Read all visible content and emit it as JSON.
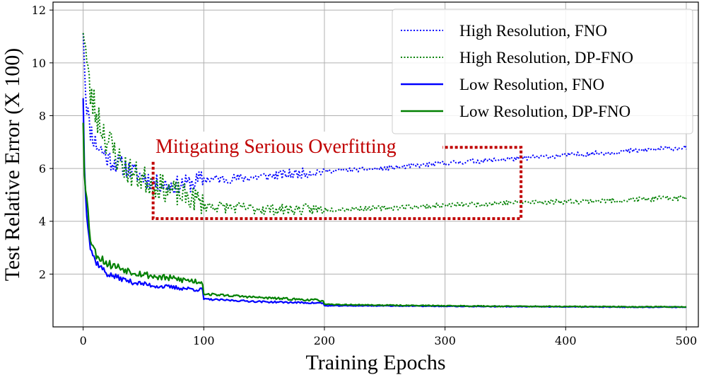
{
  "chart_data": {
    "type": "line",
    "title": "",
    "xlabel": "Training Epochs",
    "ylabel": "Test Relative Error (X 100)",
    "xlim": [
      -25,
      510
    ],
    "ylim": [
      0,
      12.3
    ],
    "x_ticks": [
      0,
      100,
      200,
      300,
      400,
      500
    ],
    "y_ticks": [
      2,
      4,
      6,
      8,
      10,
      12
    ],
    "grid": true,
    "legend": {
      "position": "top-right"
    },
    "series": [
      {
        "name": "High Resolution, FNO",
        "color": "#0000ff",
        "style": "dotted",
        "noise": 0.12,
        "seed": 11,
        "anchors": [
          [
            0,
            11.5
          ],
          [
            2,
            9.0
          ],
          [
            5,
            7.6
          ],
          [
            10,
            7.0
          ],
          [
            20,
            6.4
          ],
          [
            40,
            5.9
          ],
          [
            60,
            5.45
          ],
          [
            75,
            5.35
          ],
          [
            90,
            5.45
          ],
          [
            100,
            5.6
          ],
          [
            120,
            5.6
          ],
          [
            150,
            5.7
          ],
          [
            200,
            5.9
          ],
          [
            250,
            6.0
          ],
          [
            300,
            6.2
          ],
          [
            350,
            6.35
          ],
          [
            400,
            6.5
          ],
          [
            450,
            6.65
          ],
          [
            500,
            6.8
          ]
        ]
      },
      {
        "name": "High Resolution, DP-FNO",
        "color": "#008000",
        "style": "dotted",
        "noise": 0.18,
        "seed": 23,
        "anchors": [
          [
            0,
            11.7
          ],
          [
            2,
            10.5
          ],
          [
            5,
            9.0
          ],
          [
            10,
            8.2
          ],
          [
            20,
            7.1
          ],
          [
            30,
            6.3
          ],
          [
            40,
            5.8
          ],
          [
            60,
            5.4
          ],
          [
            80,
            5.0
          ],
          [
            95,
            4.8
          ],
          [
            100,
            4.6
          ],
          [
            130,
            4.5
          ],
          [
            160,
            4.45
          ],
          [
            200,
            4.45
          ],
          [
            250,
            4.5
          ],
          [
            300,
            4.6
          ],
          [
            350,
            4.7
          ],
          [
            400,
            4.75
          ],
          [
            450,
            4.8
          ],
          [
            500,
            4.9
          ]
        ]
      },
      {
        "name": "Low Resolution, FNO",
        "color": "#0000ff",
        "style": "solid",
        "noise": 0.1,
        "seed": 37,
        "anchors": [
          [
            0,
            8.9
          ],
          [
            1,
            6.0
          ],
          [
            3,
            4.4
          ],
          [
            6,
            3.0
          ],
          [
            10,
            2.5
          ],
          [
            20,
            2.0
          ],
          [
            40,
            1.7
          ],
          [
            60,
            1.55
          ],
          [
            99,
            1.4
          ],
          [
            100,
            1.05
          ],
          [
            150,
            0.95
          ],
          [
            199,
            0.9
          ],
          [
            200,
            0.8
          ],
          [
            250,
            0.8
          ],
          [
            300,
            0.78
          ],
          [
            350,
            0.77
          ],
          [
            400,
            0.76
          ],
          [
            450,
            0.75
          ],
          [
            500,
            0.75
          ]
        ]
      },
      {
        "name": "Low Resolution, DP-FNO",
        "color": "#008000",
        "style": "solid",
        "noise": 0.13,
        "seed": 53,
        "anchors": [
          [
            0,
            8.0
          ],
          [
            1,
            6.1
          ],
          [
            3,
            4.8
          ],
          [
            6,
            3.4
          ],
          [
            10,
            2.8
          ],
          [
            20,
            2.4
          ],
          [
            40,
            2.1
          ],
          [
            60,
            1.9
          ],
          [
            99,
            1.7
          ],
          [
            100,
            1.25
          ],
          [
            150,
            1.1
          ],
          [
            199,
            1.0
          ],
          [
            200,
            0.85
          ],
          [
            250,
            0.82
          ],
          [
            300,
            0.8
          ],
          [
            350,
            0.78
          ],
          [
            400,
            0.77
          ],
          [
            450,
            0.76
          ],
          [
            500,
            0.76
          ]
        ]
      }
    ],
    "annotation": {
      "text": "Mitigating Serious Overfitting",
      "color": "#c00000",
      "box_x": [
        58,
        363
      ],
      "box_y": [
        4.1,
        6.8
      ]
    }
  }
}
